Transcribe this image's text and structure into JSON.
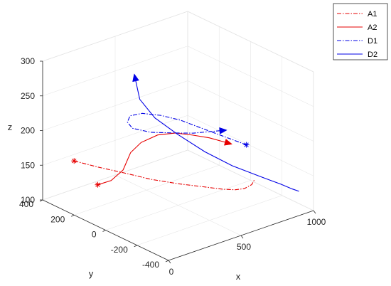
{
  "chart_data": {
    "type": "line",
    "title": "",
    "xlabel": "x",
    "ylabel": "y",
    "zlabel": "z",
    "xlim": [
      0,
      1000
    ],
    "ylim": [
      -400,
      400
    ],
    "zlim": [
      100,
      300
    ],
    "xticks": [
      "0",
      "500",
      "1000"
    ],
    "yticks": [
      "400",
      "200",
      "0",
      "-200",
      "-400"
    ],
    "zticks": [
      "100",
      "150",
      "200",
      "250",
      "300"
    ],
    "grid": true,
    "legend_position": "top-right",
    "series": [
      {
        "name": "A1",
        "color": "#e60000",
        "style": "dash-dot",
        "start_marker": "asterisk",
        "end_marker": "none",
        "points": [
          [
            0,
            200,
            178
          ],
          [
            80,
            120,
            172
          ],
          [
            170,
            40,
            166
          ],
          [
            260,
            -50,
            160
          ],
          [
            360,
            -140,
            156
          ],
          [
            450,
            -210,
            153
          ],
          [
            520,
            -270,
            151
          ],
          [
            570,
            -300,
            150
          ],
          [
            610,
            -320,
            151
          ],
          [
            650,
            -330,
            155
          ],
          [
            680,
            -320,
            159
          ]
        ]
      },
      {
        "name": "A2",
        "color": "#e60000",
        "style": "solid",
        "start_marker": "asterisk",
        "end_marker": "triangle",
        "points": [
          [
            0,
            50,
            160
          ],
          [
            60,
            20,
            165
          ],
          [
            110,
            -10,
            180
          ],
          [
            140,
            -30,
            205
          ],
          [
            180,
            -60,
            220
          ],
          [
            240,
            -110,
            232
          ],
          [
            300,
            -170,
            237
          ],
          [
            350,
            -230,
            237
          ],
          [
            400,
            -290,
            236
          ],
          [
            460,
            -350,
            231
          ]
        ]
      },
      {
        "name": "D1",
        "color": "#0000e6",
        "style": "dash-dot",
        "start_marker": "asterisk",
        "end_marker": "triangle",
        "points": [
          [
            700,
            -250,
            200
          ],
          [
            650,
            -150,
            205
          ],
          [
            600,
            -50,
            210
          ],
          [
            560,
            40,
            214
          ],
          [
            520,
            130,
            214
          ],
          [
            480,
            210,
            211
          ],
          [
            440,
            250,
            206
          ],
          [
            400,
            230,
            202
          ],
          [
            380,
            180,
            200
          ],
          [
            420,
            100,
            200
          ],
          [
            500,
            20,
            202
          ],
          [
            560,
            -40,
            204
          ],
          [
            640,
            -150,
            214
          ]
        ]
      },
      {
        "name": "D2",
        "color": "#0000e6",
        "style": "solid",
        "start_marker": "none",
        "end_marker": "triangle",
        "points": [
          [
            900,
            -400,
            135
          ],
          [
            875,
            -380,
            138
          ],
          [
            840,
            -340,
            143
          ],
          [
            780,
            -260,
            150
          ],
          [
            700,
            -160,
            160
          ],
          [
            620,
            -60,
            175
          ],
          [
            540,
            40,
            195
          ],
          [
            470,
            120,
            215
          ],
          [
            420,
            170,
            240
          ],
          [
            400,
            180,
            270
          ]
        ]
      }
    ]
  }
}
